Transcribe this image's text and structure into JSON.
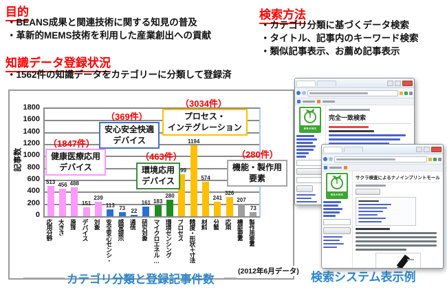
{
  "colors": {
    "heading_red": "#ff0000",
    "caption_blue": "#2e86c8",
    "logo_green": "#3fa535"
  },
  "sections": {
    "purpose": {
      "title": "目的",
      "bullets": [
        "・BEANS成果と関連技術に関する知見の普及",
        "・革新的MEMS技術を利用した産業創出への貢献"
      ]
    },
    "registration": {
      "title": "知識データ登録状況",
      "bullets": [
        "・1562件の知識データをカテゴリーに分類して登録済"
      ]
    },
    "search": {
      "title": "検索方法",
      "bullets": [
        "・カテゴリ分類に基づくデータ検索",
        "・タイトル、記事内のキーワード検索",
        "・類似記事表示、お薦め記事表示"
      ]
    }
  },
  "chart_data": {
    "type": "bar",
    "title": "カテゴリ分類と登録記事件数",
    "ylabel": "記事数",
    "xlabel": "",
    "note": "(2012年6月データ)",
    "ylim": [
      0,
      1800
    ],
    "ytick_step": 200,
    "grid": true,
    "categories": [
      "応用分野",
      "大きさ",
      "原理",
      "デバイス",
      "対象",
      "安全安心センシ･",
      "感覚提示",
      "通信",
      "研究対象",
      "マイクロエネル…",
      "環境センシング",
      "プロセス",
      "精度・形状＋寸法",
      "材料",
      "分類",
      "応用",
      "機能要素",
      "製作用要素"
    ],
    "values": [
      513,
      456,
      488,
      151,
      239,
      113,
      73,
      22,
      161,
      183,
      280,
      699,
      1194,
      574,
      241,
      326,
      207,
      73
    ],
    "bar_color_keys": [
      "pink",
      "pink",
      "pink",
      "pink",
      "pink",
      "blue",
      "blue",
      "blue",
      "blue",
      "green",
      "green",
      "yellow",
      "yellow",
      "yellow",
      "yellow",
      "yellow",
      "gray",
      "gray"
    ],
    "palette": {
      "pink": "#ff99ff",
      "blue": "#2970d6",
      "green": "#1e8c1e",
      "yellow": "#ffc000",
      "gray": "#9e9e9e"
    },
    "groups": [
      {
        "label": "健康医療応用\nデバイス",
        "count_label": "（1847件）",
        "border": "#ff99ff"
      },
      {
        "label": "安心安全快適\nデバイス",
        "count_label": "（369件）",
        "border": "#4472c4"
      },
      {
        "label": "環境応用\nデバイス",
        "count_label": "（463件）",
        "border": "#3c8c3c"
      },
      {
        "label": "プロセス・\nインテグレーション",
        "count_label": "（3034件）",
        "border": "#ffc000"
      },
      {
        "label": "機能・製作用\n要素",
        "count_label": "（280件）",
        "border": "#a6a6a6"
      }
    ]
  },
  "screenshots": {
    "caption": "検索システム表示例",
    "logo_text": "BEANS",
    "window1": {
      "heading": "完全一致検索"
    },
    "window2": {
      "heading": "サクラ検査によるナノインプリントモールド表面の離型性の有無評価"
    }
  }
}
